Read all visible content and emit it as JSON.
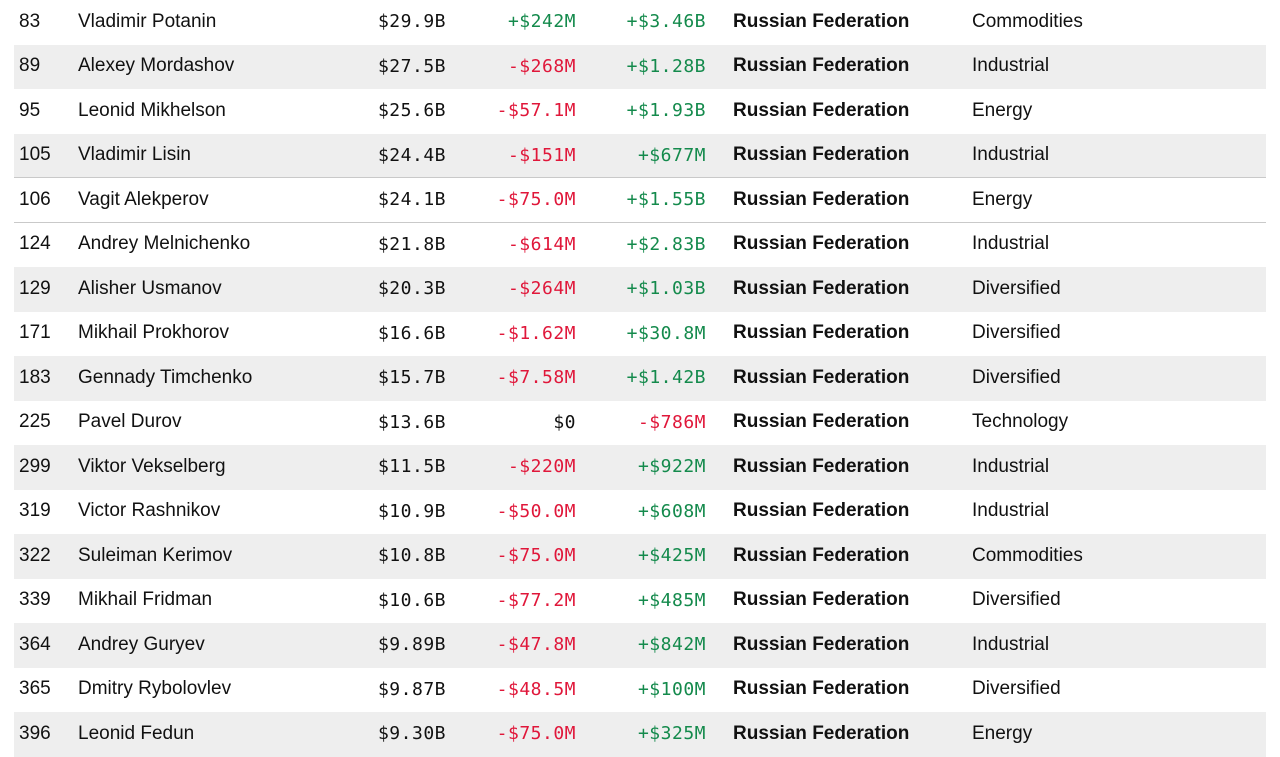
{
  "colors": {
    "negative": "#e0173a",
    "positive": "#148a4c",
    "neutral": "#111111",
    "stripe": "#eeeeee"
  },
  "rows": [
    {
      "rank": "83",
      "name": "Vladimir Potanin",
      "net_worth": "$29.9B",
      "change_day": "+$242M",
      "change_ytd": "+$3.46B",
      "country": "Russian Federation",
      "industry": "Commodities"
    },
    {
      "rank": "89",
      "name": "Alexey Mordashov",
      "net_worth": "$27.5B",
      "change_day": "-$268M",
      "change_ytd": "+$1.28B",
      "country": "Russian Federation",
      "industry": "Industrial"
    },
    {
      "rank": "95",
      "name": "Leonid Mikhelson",
      "net_worth": "$25.6B",
      "change_day": "-$57.1M",
      "change_ytd": "+$1.93B",
      "country": "Russian Federation",
      "industry": "Energy"
    },
    {
      "rank": "105",
      "name": "Vladimir Lisin",
      "net_worth": "$24.4B",
      "change_day": "-$151M",
      "change_ytd": "+$677M",
      "country": "Russian Federation",
      "industry": "Industrial"
    },
    {
      "rank": "106",
      "name": "Vagit Alekperov",
      "net_worth": "$24.1B",
      "change_day": "-$75.0M",
      "change_ytd": "+$1.55B",
      "country": "Russian Federation",
      "industry": "Energy"
    },
    {
      "rank": "124",
      "name": "Andrey Melnichenko",
      "net_worth": "$21.8B",
      "change_day": "-$614M",
      "change_ytd": "+$2.83B",
      "country": "Russian Federation",
      "industry": "Industrial"
    },
    {
      "rank": "129",
      "name": "Alisher Usmanov",
      "net_worth": "$20.3B",
      "change_day": "-$264M",
      "change_ytd": "+$1.03B",
      "country": "Russian Federation",
      "industry": "Diversified"
    },
    {
      "rank": "171",
      "name": "Mikhail Prokhorov",
      "net_worth": "$16.6B",
      "change_day": "-$1.62M",
      "change_ytd": "+$30.8M",
      "country": "Russian Federation",
      "industry": "Diversified"
    },
    {
      "rank": "183",
      "name": "Gennady Timchenko",
      "net_worth": "$15.7B",
      "change_day": "-$7.58M",
      "change_ytd": "+$1.42B",
      "country": "Russian Federation",
      "industry": "Diversified"
    },
    {
      "rank": "225",
      "name": "Pavel Durov",
      "net_worth": "$13.6B",
      "change_day": "$0",
      "change_ytd": "-$786M",
      "country": "Russian Federation",
      "industry": "Technology"
    },
    {
      "rank": "299",
      "name": "Viktor Vekselberg",
      "net_worth": "$11.5B",
      "change_day": "-$220M",
      "change_ytd": "+$922M",
      "country": "Russian Federation",
      "industry": "Industrial"
    },
    {
      "rank": "319",
      "name": "Victor Rashnikov",
      "net_worth": "$10.9B",
      "change_day": "-$50.0M",
      "change_ytd": "+$608M",
      "country": "Russian Federation",
      "industry": "Industrial"
    },
    {
      "rank": "322",
      "name": "Suleiman Kerimov",
      "net_worth": "$10.8B",
      "change_day": "-$75.0M",
      "change_ytd": "+$425M",
      "country": "Russian Federation",
      "industry": "Commodities"
    },
    {
      "rank": "339",
      "name": "Mikhail Fridman",
      "net_worth": "$10.6B",
      "change_day": "-$77.2M",
      "change_ytd": "+$485M",
      "country": "Russian Federation",
      "industry": "Diversified"
    },
    {
      "rank": "364",
      "name": "Andrey Guryev",
      "net_worth": "$9.89B",
      "change_day": "-$47.8M",
      "change_ytd": "+$842M",
      "country": "Russian Federation",
      "industry": "Industrial"
    },
    {
      "rank": "365",
      "name": "Dmitry Rybolovlev",
      "net_worth": "$9.87B",
      "change_day": "-$48.5M",
      "change_ytd": "+$100M",
      "country": "Russian Federation",
      "industry": "Diversified"
    },
    {
      "rank": "396",
      "name": "Leonid Fedun",
      "net_worth": "$9.30B",
      "change_day": "-$75.0M",
      "change_ytd": "+$325M",
      "country": "Russian Federation",
      "industry": "Energy"
    }
  ]
}
